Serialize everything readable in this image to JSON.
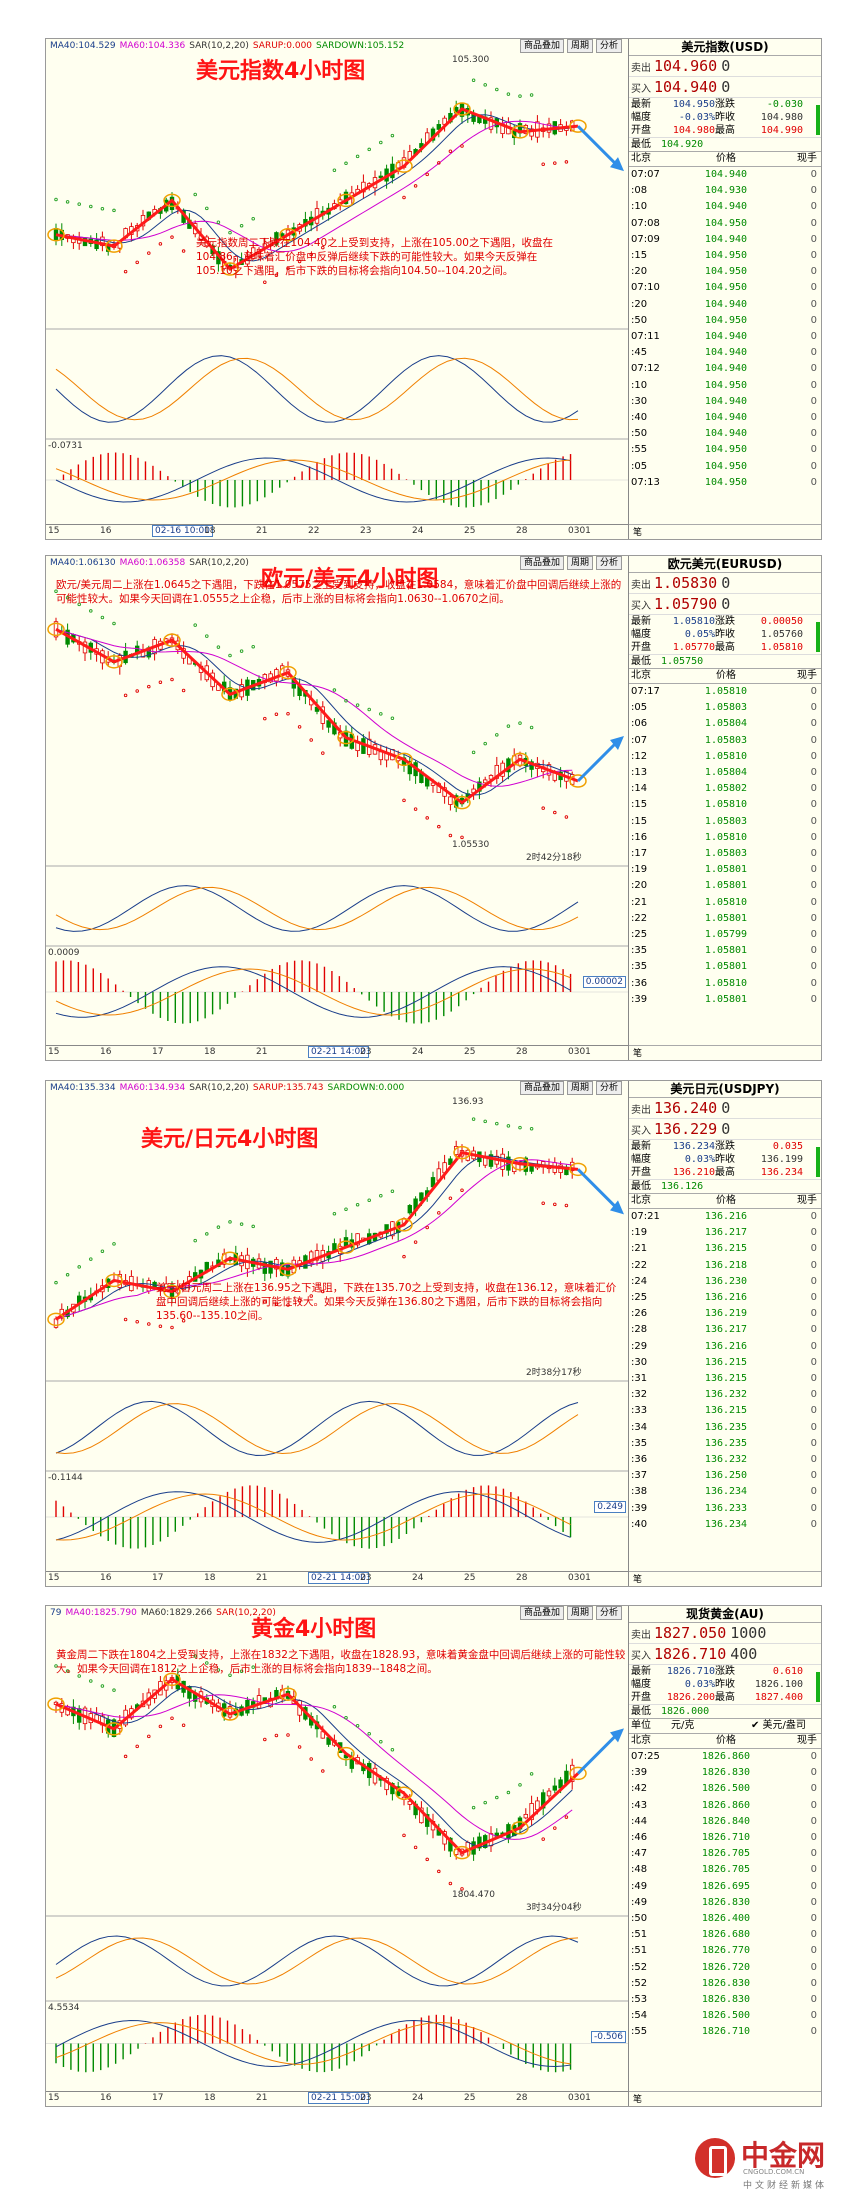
{
  "panels": [
    {
      "id": "usd",
      "top": "",
      "topbar": [
        "MA40:104.529",
        "MA60:104.336",
        "SAR(10,2,20)",
        "SARUP:0.000",
        "SARDOWN:105.152"
      ],
      "btns": [
        "商品叠加",
        "周期",
        "分析"
      ],
      "title": "美元指数4小时图",
      "note": "美元指数周二下跌在104.40之上受到支持，上涨在105.00之下遇阻，收盘在104.86，意味着汇价盘中反弹后继续下跌的可能性较大。如果今天反弹在105.10之下遇阻，后市下跌的目标将会指向104.50--104.20之间。",
      "peak_label": "105.300",
      "sub2_label": "-0.0731",
      "axis": [
        "15",
        "16",
        "02-16 10:00",
        "18",
        "21",
        "22",
        "23",
        "24",
        "25",
        "28",
        "0301"
      ],
      "quote": {
        "title": "美元指数(USD)",
        "sell_label": "卖出",
        "sell": "104.960",
        "sell_sfx": "0",
        "buy_label": "买入",
        "buy": "104.940",
        "buy_sfx": "0",
        "stats": [
          [
            "最新",
            "104.950",
            "涨跌",
            "-0.030"
          ],
          [
            "幅度",
            "-0.03%",
            "昨收",
            "104.980"
          ],
          [
            "开盘",
            "104.980",
            "最高",
            "104.990"
          ]
        ],
        "low_label": "最低",
        "low": "104.920",
        "head": [
          "北京",
          "价格",
          "现手"
        ],
        "rows": [
          [
            "07:07",
            "104.940",
            "0"
          ],
          [
            ":08",
            "104.930",
            "0"
          ],
          [
            ":10",
            "104.940",
            "0"
          ],
          [
            "07:08",
            "104.950",
            "0"
          ],
          [
            "07:09",
            "104.940",
            "0"
          ],
          [
            ":15",
            "104.950",
            "0"
          ],
          [
            ":20",
            "104.950",
            "0"
          ],
          [
            "07:10",
            "104.950",
            "0"
          ],
          [
            ":20",
            "104.940",
            "0"
          ],
          [
            ":50",
            "104.950",
            "0"
          ],
          [
            "07:11",
            "104.940",
            "0"
          ],
          [
            ":45",
            "104.940",
            "0"
          ],
          [
            "07:12",
            "104.940",
            "0"
          ],
          [
            ":10",
            "104.950",
            "0"
          ],
          [
            ":30",
            "104.940",
            "0"
          ],
          [
            ":40",
            "104.940",
            "0"
          ],
          [
            ":50",
            "104.940",
            "0"
          ],
          [
            ":55",
            "104.950",
            "0"
          ],
          [
            ":05",
            "104.950",
            "0"
          ],
          [
            "07:13",
            "104.950",
            "0"
          ]
        ],
        "foot": "笔"
      }
    },
    {
      "id": "eur",
      "topbar": [
        "MA40:1.06130",
        "MA60:1.06358",
        "SAR(10,2,20)"
      ],
      "btns": [
        "商品叠加",
        "周期",
        "分析"
      ],
      "title": "欧元/美元4小时图",
      "note": "欧元/美元周二上涨在1.0645之下遇阻，下跌在1.0575之上受到支持，收盘在1.0584，意味着汇价盘中回调后继续上涨的可能性较大。如果今天回调在1.0555之上企稳，后市上涨的目标将会指向1.0630--1.0670之间。",
      "peak_label": "1.05530",
      "timer": "2时42分18秒",
      "sub2_label": "0.0009",
      "sub2_val": "0.00002",
      "axis": [
        "15",
        "16",
        "17",
        "18",
        "21",
        "02-21 14:00",
        "23",
        "24",
        "25",
        "28",
        "0301"
      ],
      "quote": {
        "title": "欧元美元(EURUSD)",
        "sell_label": "卖出",
        "sell": "1.05830",
        "sell_sfx": "0",
        "buy_label": "买入",
        "buy": "1.05790",
        "buy_sfx": "0",
        "stats": [
          [
            "最新",
            "1.05810",
            "涨跌",
            "0.00050"
          ],
          [
            "幅度",
            "0.05%",
            "昨收",
            "1.05760"
          ],
          [
            "开盘",
            "1.05770",
            "最高",
            "1.05810"
          ]
        ],
        "low_label": "最低",
        "low": "1.05750",
        "head": [
          "北京",
          "价格",
          "现手"
        ],
        "rows": [
          [
            "07:17",
            "1.05810",
            "0"
          ],
          [
            ":05",
            "1.05803",
            "0"
          ],
          [
            ":06",
            "1.05804",
            "0"
          ],
          [
            ":07",
            "1.05803",
            "0"
          ],
          [
            ":12",
            "1.05810",
            "0"
          ],
          [
            ":13",
            "1.05804",
            "0"
          ],
          [
            ":14",
            "1.05802",
            "0"
          ],
          [
            ":15",
            "1.05810",
            "0"
          ],
          [
            ":15",
            "1.05803",
            "0"
          ],
          [
            ":16",
            "1.05810",
            "0"
          ],
          [
            ":17",
            "1.05803",
            "0"
          ],
          [
            ":19",
            "1.05801",
            "0"
          ],
          [
            ":20",
            "1.05801",
            "0"
          ],
          [
            ":21",
            "1.05810",
            "0"
          ],
          [
            ":22",
            "1.05801",
            "0"
          ],
          [
            ":25",
            "1.05799",
            "0"
          ],
          [
            ":35",
            "1.05801",
            "0"
          ],
          [
            ":35",
            "1.05801",
            "0"
          ],
          [
            ":36",
            "1.05810",
            "0"
          ],
          [
            ":39",
            "1.05801",
            "0"
          ]
        ],
        "foot": "笔"
      }
    },
    {
      "id": "jpy",
      "topbar": [
        "MA40:135.334",
        "MA60:134.934",
        "SAR(10,2,20)",
        "SARUP:135.743",
        "SARDOWN:0.000"
      ],
      "btns": [
        "商品叠加",
        "周期",
        "分析"
      ],
      "title": "美元/日元4小时图",
      "note": "美元/日元周二上涨在136.95之下遇阻，下跌在135.70之上受到支持，收盘在136.12，意味着汇价盘中回调后继续上涨的可能性较大。如果今天反弹在136.80之下遇阻，后市下跌的目标将会指向135.60--135.10之间。",
      "peak_label": "136.93",
      "timer": "2时38分17秒",
      "sub2_label": "-0.1144",
      "sub2_val": "0.249",
      "axis": [
        "15",
        "16",
        "17",
        "18",
        "21",
        "02-21 14:00",
        "23",
        "24",
        "25",
        "28",
        "0301"
      ],
      "quote": {
        "title": "美元日元(USDJPY)",
        "sell_label": "卖出",
        "sell": "136.240",
        "sell_sfx": "0",
        "buy_label": "买入",
        "buy": "136.229",
        "buy_sfx": "0",
        "stats": [
          [
            "最新",
            "136.234",
            "涨跌",
            "0.035"
          ],
          [
            "幅度",
            "0.03%",
            "昨收",
            "136.199"
          ],
          [
            "开盘",
            "136.210",
            "最高",
            "136.234"
          ]
        ],
        "low_label": "最低",
        "low": "136.126",
        "head": [
          "北京",
          "价格",
          "现手"
        ],
        "rows": [
          [
            "07:21",
            "136.216",
            "0"
          ],
          [
            ":19",
            "136.217",
            "0"
          ],
          [
            ":21",
            "136.215",
            "0"
          ],
          [
            ":22",
            "136.218",
            "0"
          ],
          [
            ":24",
            "136.230",
            "0"
          ],
          [
            ":25",
            "136.216",
            "0"
          ],
          [
            ":26",
            "136.219",
            "0"
          ],
          [
            ":28",
            "136.217",
            "0"
          ],
          [
            ":29",
            "136.216",
            "0"
          ],
          [
            ":30",
            "136.215",
            "0"
          ],
          [
            ":31",
            "136.215",
            "0"
          ],
          [
            ":32",
            "136.232",
            "0"
          ],
          [
            ":33",
            "136.215",
            "0"
          ],
          [
            ":34",
            "136.235",
            "0"
          ],
          [
            ":35",
            "136.235",
            "0"
          ],
          [
            ":36",
            "136.232",
            "0"
          ],
          [
            ":37",
            "136.250",
            "0"
          ],
          [
            ":38",
            "136.234",
            "0"
          ],
          [
            ":39",
            "136.233",
            "0"
          ],
          [
            ":40",
            "136.234",
            "0"
          ]
        ],
        "foot": "笔"
      }
    },
    {
      "id": "gold",
      "topbar": [
        "79",
        "MA40:1825.790",
        "MA60:1829.266",
        "SAR(10,2,20)"
      ],
      "btns": [
        "商品叠加",
        "周期",
        "分析"
      ],
      "title": "黄金4小时图",
      "note": "黄金周二下跌在1804之上受到支持，上涨在1832之下遇阻，收盘在1828.93，意味着黄金盘中回调后继续上涨的可能性较大。如果今天回调在1812之上企稳，后市上涨的目标将会指向1839--1848之间。",
      "peak_label": "1804.470",
      "timer": "3时34分04秒",
      "sub2_label": "4.5534",
      "sub2_val": "-0.506",
      "axis": [
        "15",
        "16",
        "17",
        "18",
        "21",
        "02-21 15:00",
        "23",
        "24",
        "25",
        "28",
        "0301"
      ],
      "quote": {
        "title": "现货黄金(AU)",
        "sell_label": "卖出",
        "sell": "1827.050",
        "sell_sfx": "1000",
        "buy_label": "买入",
        "buy": "1826.710",
        "buy_sfx": "400",
        "stats": [
          [
            "最新",
            "1826.710",
            "涨跌",
            "0.610"
          ],
          [
            "幅度",
            "0.03%",
            "昨收",
            "1826.100"
          ],
          [
            "开盘",
            "1826.200",
            "最高",
            "1827.400"
          ]
        ],
        "low_label": "最低",
        "low": "1826.000",
        "unit_row": [
          "单位",
          "元/克",
          "✔ 美元/盎司"
        ],
        "head": [
          "北京",
          "价格",
          "现手"
        ],
        "rows": [
          [
            "07:25",
            "1826.860",
            "0"
          ],
          [
            ":39",
            "1826.830",
            "0"
          ],
          [
            ":42",
            "1826.500",
            "0"
          ],
          [
            ":43",
            "1826.860",
            "0"
          ],
          [
            ":44",
            "1826.840",
            "0"
          ],
          [
            ":46",
            "1826.710",
            "0"
          ],
          [
            ":47",
            "1826.705",
            "0"
          ],
          [
            ":48",
            "1826.705",
            "0"
          ],
          [
            ":49",
            "1826.695",
            "0"
          ],
          [
            ":49",
            "1826.830",
            "0"
          ],
          [
            ":50",
            "1826.400",
            "0"
          ],
          [
            ":51",
            "1826.680",
            "0"
          ],
          [
            ":51",
            "1826.770",
            "0"
          ],
          [
            ":52",
            "1826.720",
            "0"
          ],
          [
            ":52",
            "1826.830",
            "0"
          ],
          [
            ":53",
            "1826.830",
            "0"
          ],
          [
            ":54",
            "1826.500",
            "0"
          ],
          [
            ":55",
            "1826.710",
            "0"
          ]
        ],
        "foot": "笔"
      }
    }
  ],
  "logo": {
    "name": "中金网",
    "url": "CNGOLD.COM.CN",
    "tag": "中文财经新媒体"
  },
  "chart_data": [
    {
      "type": "line",
      "title": "美元指数4小时图",
      "x": [
        "15",
        "16",
        "18",
        "21",
        "22",
        "23",
        "24",
        "25",
        "28",
        "0301"
      ],
      "series": [
        {
          "values": [
            104.0,
            103.9,
            104.3,
            103.7,
            104.0,
            104.3,
            104.6,
            105.1,
            104.9,
            104.95
          ]
        }
      ],
      "annotations": [
        "105.300"
      ]
    },
    {
      "type": "line",
      "title": "欧元/美元4小时图",
      "x": [
        "15",
        "16",
        "17",
        "18",
        "21",
        "23",
        "24",
        "25",
        "28",
        "0301"
      ],
      "series": [
        {
          "values": [
            1.072,
            1.069,
            1.071,
            1.066,
            1.068,
            1.062,
            1.06,
            1.056,
            1.06,
            1.058
          ]
        }
      ],
      "annotations": [
        "1.05530"
      ]
    },
    {
      "type": "line",
      "title": "美元/日元4小时图",
      "x": [
        "15",
        "16",
        "17",
        "18",
        "21",
        "23",
        "24",
        "25",
        "28",
        "0301"
      ],
      "series": [
        {
          "values": [
            133.5,
            134.2,
            134.0,
            134.6,
            134.4,
            134.8,
            135.2,
            136.5,
            136.3,
            136.2
          ]
        }
      ],
      "annotations": [
        "136.93"
      ]
    },
    {
      "type": "line",
      "title": "黄金4小时图",
      "x": [
        "15",
        "16",
        "17",
        "18",
        "21",
        "23",
        "24",
        "25",
        "28",
        "0301"
      ],
      "series": [
        {
          "values": [
            1840,
            1835,
            1845,
            1838,
            1842,
            1830,
            1822,
            1810,
            1815,
            1826
          ]
        }
      ],
      "annotations": [
        "1804.470"
      ]
    }
  ]
}
